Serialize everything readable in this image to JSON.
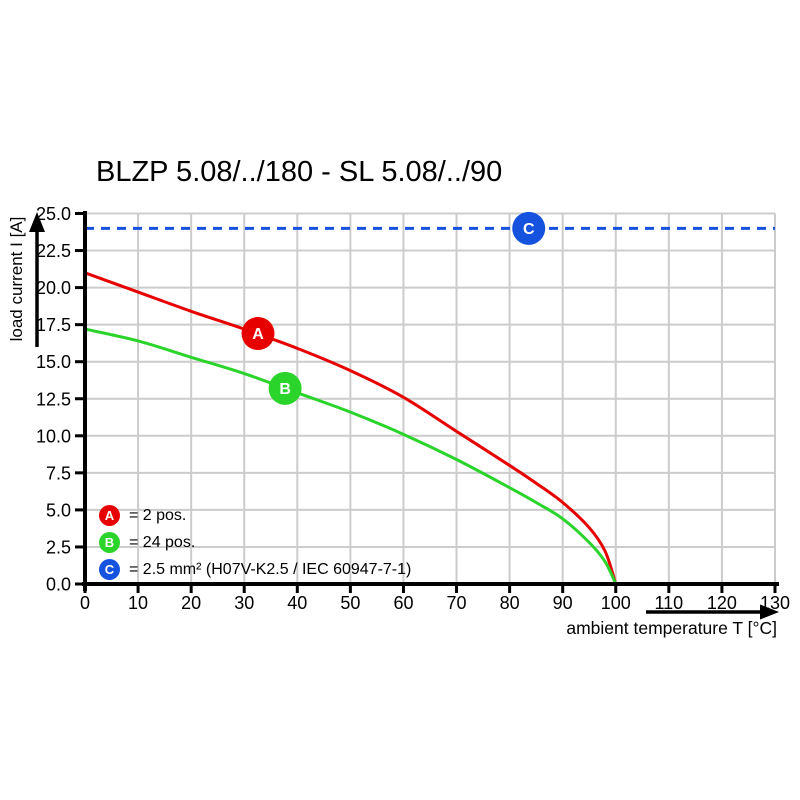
{
  "chart": {
    "title": "BLZP 5.08/../180 - SL 5.08/../90",
    "y_axis": {
      "label": "load current I [A]"
    },
    "x_axis": {
      "label": "ambient temperature T [°C]"
    },
    "legend": {
      "items": [
        {
          "key": "A",
          "color": "#e60000",
          "text": "= 2 pos."
        },
        {
          "key": "B",
          "color": "#2bd42b",
          "text": "= 24 pos."
        },
        {
          "key": "C",
          "color": "#1552dd",
          "text": "= 2.5 mm² (H07V-K2.5 / IEC 60947-7-1)"
        }
      ]
    }
  },
  "chart_data": {
    "type": "line",
    "title": "BLZP 5.08/../180 - SL 5.08/../90",
    "xlabel": "ambient temperature T [°C]",
    "ylabel": "load current I [A]",
    "xlim": [
      0,
      130
    ],
    "ylim": [
      0,
      25
    ],
    "x_ticks": [
      0,
      10,
      20,
      30,
      40,
      50,
      60,
      70,
      80,
      90,
      100,
      110,
      120,
      130
    ],
    "x_tick_labels": [
      "0",
      "10",
      "20",
      "30",
      "40",
      "50",
      "60",
      "70",
      "80",
      "90",
      "100",
      "110",
      "120",
      "130"
    ],
    "y_ticks": [
      0,
      2.5,
      5,
      7.5,
      10,
      12.5,
      15,
      17.5,
      20,
      22.5,
      25
    ],
    "y_tick_labels": [
      "0.0",
      "2.5",
      "5.0",
      "7.5",
      "10.0",
      "12.5",
      "15.0",
      "17.5",
      "20.0",
      "22.5",
      "25.0"
    ],
    "grid": true,
    "grid_color": "#cccccc",
    "legend_position": "lower-left-inside",
    "series": [
      {
        "name": "A",
        "label": "2 pos.",
        "color": "#e60000",
        "line_style": "solid",
        "points": [
          [
            0,
            21.0
          ],
          [
            10,
            19.7
          ],
          [
            20,
            18.4
          ],
          [
            30,
            17.2
          ],
          [
            40,
            15.9
          ],
          [
            50,
            14.4
          ],
          [
            60,
            12.6
          ],
          [
            70,
            10.3
          ],
          [
            80,
            8.0
          ],
          [
            85,
            6.8
          ],
          [
            90,
            5.5
          ],
          [
            95,
            3.8
          ],
          [
            98,
            2.2
          ],
          [
            100,
            0
          ]
        ]
      },
      {
        "name": "B",
        "label": "24 pos.",
        "color": "#2bd42b",
        "line_style": "solid",
        "points": [
          [
            0,
            17.2
          ],
          [
            10,
            16.4
          ],
          [
            20,
            15.3
          ],
          [
            30,
            14.2
          ],
          [
            40,
            12.9
          ],
          [
            50,
            11.6
          ],
          [
            60,
            10.1
          ],
          [
            70,
            8.4
          ],
          [
            80,
            6.5
          ],
          [
            85,
            5.5
          ],
          [
            90,
            4.4
          ],
          [
            95,
            2.8
          ],
          [
            98,
            1.5
          ],
          [
            100,
            0
          ]
        ]
      },
      {
        "name": "C",
        "label": "2.5 mm² (H07V-K2.5 / IEC 60947-7-1)",
        "color": "#1552dd",
        "line_style": "dashed",
        "points": [
          [
            0,
            24
          ],
          [
            130,
            24
          ]
        ]
      }
    ],
    "markers": [
      {
        "key": "A",
        "x": 32.6,
        "y": 16.9,
        "color": "#e60000"
      },
      {
        "key": "B",
        "x": 37.7,
        "y": 13.2,
        "color": "#2bd42b"
      },
      {
        "key": "C",
        "x": 83.6,
        "y": 24.0,
        "color": "#1552dd"
      }
    ]
  }
}
